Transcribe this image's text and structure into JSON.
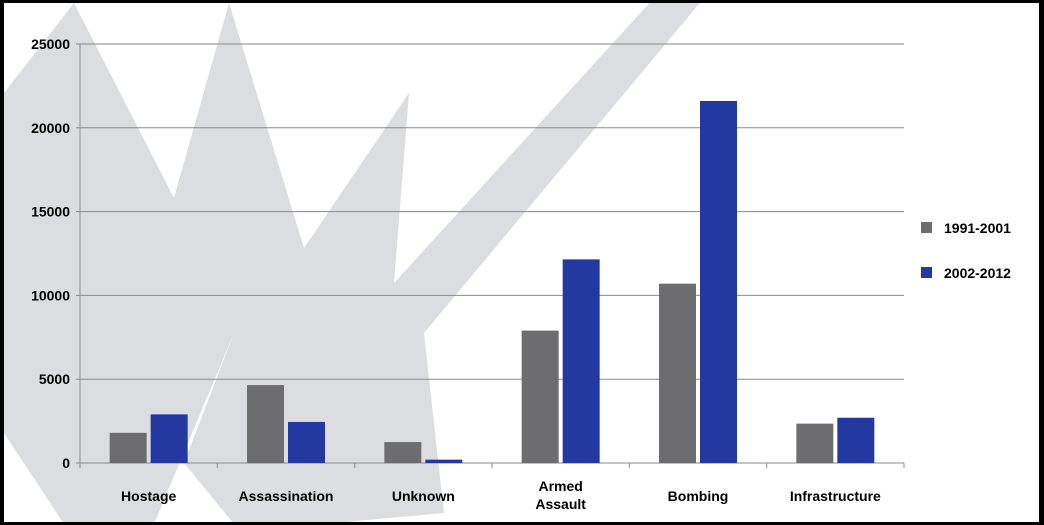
{
  "chart_data": {
    "type": "bar",
    "title": "",
    "xlabel": "",
    "ylabel": "",
    "categories": [
      [
        "Hostage"
      ],
      [
        "Assassination"
      ],
      [
        "Unknown"
      ],
      [
        "Armed",
        "Assault"
      ],
      [
        "Bombing"
      ],
      [
        "Infrastructure"
      ]
    ],
    "series": [
      {
        "name": "1991-2001",
        "color": "#6d6d6f",
        "values": [
          1800,
          4650,
          1250,
          7900,
          10700,
          2350
        ]
      },
      {
        "name": "2002-2012",
        "color": "#2338a0",
        "values": [
          2900,
          2450,
          200,
          12150,
          21600,
          2700
        ]
      }
    ],
    "ylim": [
      0,
      25000
    ],
    "yticks": [
      0,
      5000,
      10000,
      15000,
      20000,
      25000
    ],
    "grid": true,
    "legend": "right"
  }
}
